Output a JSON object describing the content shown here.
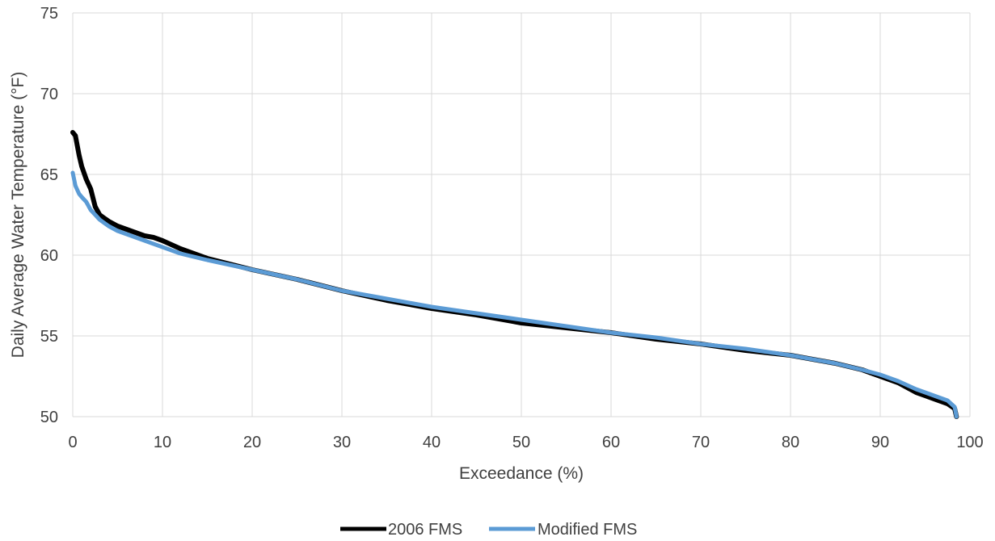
{
  "chart_data": {
    "type": "line",
    "title": "",
    "xlabel": "Exceedance (%)",
    "ylabel": "Daily Average Water Temperature (°F)",
    "xlim": [
      0,
      100
    ],
    "ylim": [
      50,
      75
    ],
    "xticks": [
      0,
      10,
      20,
      30,
      40,
      50,
      60,
      70,
      80,
      90,
      100
    ],
    "yticks": [
      50,
      55,
      60,
      65,
      70,
      75
    ],
    "grid": true,
    "legend_position": "bottom",
    "series": [
      {
        "name": "2006 FMS",
        "color": "#000000",
        "x": [
          0,
          0.3,
          0.7,
          1,
          1.5,
          2,
          2.5,
          3,
          3.5,
          4,
          5,
          6,
          7,
          8,
          9,
          10,
          12,
          15,
          20,
          25,
          30,
          35,
          40,
          45,
          50,
          55,
          60,
          65,
          70,
          75,
          80,
          85,
          88,
          90,
          92,
          94,
          96,
          97.5,
          98.3,
          98.5
        ],
        "y": [
          67.6,
          67.4,
          66.2,
          65.5,
          64.7,
          64.1,
          63.0,
          62.5,
          62.3,
          62.1,
          61.8,
          61.6,
          61.4,
          61.2,
          61.1,
          60.9,
          60.4,
          59.8,
          59.1,
          58.5,
          57.8,
          57.2,
          56.7,
          56.3,
          55.8,
          55.5,
          55.2,
          54.8,
          54.5,
          54.1,
          53.8,
          53.3,
          52.9,
          52.5,
          52.1,
          51.5,
          51.1,
          50.8,
          50.5,
          50.0
        ]
      },
      {
        "name": "Modified FMS",
        "color": "#5b9bd5",
        "x": [
          0,
          0.3,
          0.7,
          1,
          1.5,
          2,
          2.5,
          3,
          3.5,
          4,
          5,
          6,
          7,
          8,
          9,
          10,
          12,
          15,
          20,
          25,
          30,
          35,
          40,
          45,
          50,
          55,
          60,
          65,
          70,
          75,
          80,
          85,
          88,
          90,
          92,
          94,
          96,
          97.5,
          98.3,
          98.5
        ],
        "y": [
          65.1,
          64.3,
          63.8,
          63.6,
          63.3,
          62.8,
          62.5,
          62.2,
          62.0,
          61.8,
          61.5,
          61.3,
          61.1,
          60.9,
          60.7,
          60.5,
          60.1,
          59.7,
          59.1,
          58.5,
          57.8,
          57.3,
          56.8,
          56.4,
          56.0,
          55.6,
          55.2,
          54.9,
          54.5,
          54.2,
          53.8,
          53.3,
          52.9,
          52.6,
          52.2,
          51.7,
          51.3,
          51.0,
          50.6,
          50.0
        ]
      }
    ]
  }
}
